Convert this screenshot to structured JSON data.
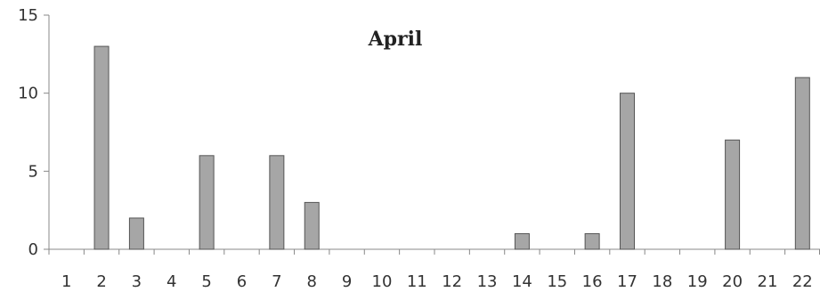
{
  "chart_data": {
    "type": "bar",
    "title": "April",
    "xlabel": "",
    "ylabel": "",
    "ylim": [
      0,
      15
    ],
    "yticks": [
      0,
      5,
      10,
      15
    ],
    "grid": false,
    "legend": "none",
    "categories": [
      "1",
      "2",
      "3",
      "4",
      "5",
      "6",
      "7",
      "8",
      "9",
      "10",
      "11",
      "12",
      "13",
      "14",
      "15",
      "16",
      "17",
      "18",
      "19",
      "20",
      "21",
      "22"
    ],
    "values": [
      0,
      13,
      2,
      0,
      6,
      0,
      6,
      3,
      0,
      0,
      0,
      0,
      0,
      1,
      0,
      1,
      10,
      0,
      0,
      7,
      0,
      11
    ],
    "bar_color": "#a6a6a6",
    "bar_edge_color": "#555555",
    "axis_color": "#888888"
  }
}
